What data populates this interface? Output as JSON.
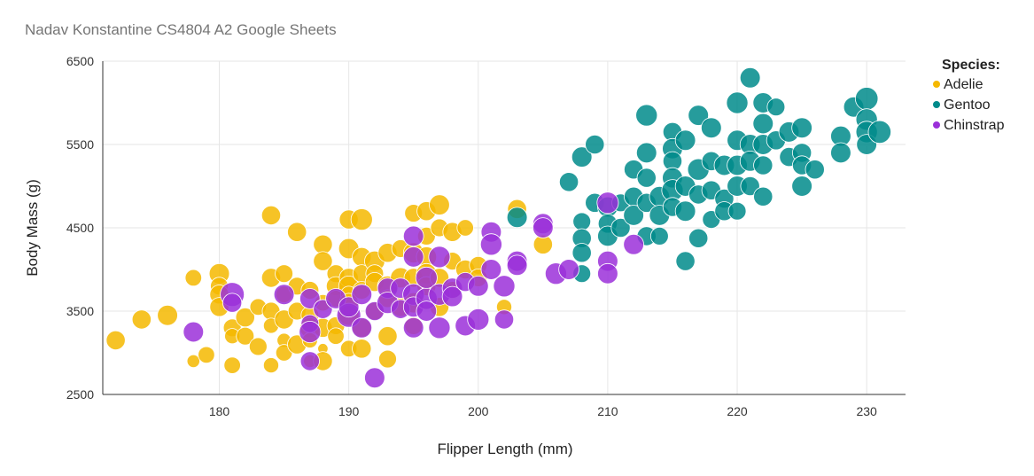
{
  "page": {
    "title": "Nadav Konstantine CS4804 A2 Google Sheets"
  },
  "chart_data": {
    "type": "scatter",
    "xlabel": "Flipper Length (mm)",
    "ylabel": "Body Mass (g)",
    "xlim": [
      171,
      233
    ],
    "ylim": [
      2500,
      6500
    ],
    "x_ticks": [
      180,
      190,
      200,
      210,
      220,
      230
    ],
    "y_ticks": [
      2500,
      3500,
      4500,
      5500,
      6500
    ],
    "grid": true,
    "bubble_size_encoding": true,
    "legend": {
      "title": "Species:",
      "position": "top-right"
    },
    "colors": {
      "Adelie": "#f5b800",
      "Gentoo": "#008b8b",
      "Chinstrap": "#9b30d9"
    },
    "series": [
      {
        "name": "Adelie",
        "points": [
          [
            172,
            3150,
            0.55
          ],
          [
            174,
            3400,
            0.55
          ],
          [
            176,
            3450,
            0.6
          ],
          [
            178,
            3900,
            0.45
          ],
          [
            178,
            2900,
            0.3
          ],
          [
            179,
            2975,
            0.45
          ],
          [
            180,
            3950,
            0.6
          ],
          [
            180,
            3800,
            0.5
          ],
          [
            180,
            3700,
            0.55
          ],
          [
            180,
            3550,
            0.55
          ],
          [
            181,
            3300,
            0.5
          ],
          [
            181,
            3200,
            0.4
          ],
          [
            181,
            2850,
            0.45
          ],
          [
            182,
            3425,
            0.55
          ],
          [
            182,
            3200,
            0.5
          ],
          [
            183,
            3550,
            0.45
          ],
          [
            183,
            3075,
            0.5
          ],
          [
            184,
            4650,
            0.55
          ],
          [
            184,
            3900,
            0.55
          ],
          [
            184,
            3500,
            0.5
          ],
          [
            184,
            3325,
            0.4
          ],
          [
            184,
            2850,
            0.4
          ],
          [
            185,
            3950,
            0.5
          ],
          [
            185,
            3700,
            0.45
          ],
          [
            185,
            3400,
            0.55
          ],
          [
            185,
            3150,
            0.35
          ],
          [
            185,
            3000,
            0.45
          ],
          [
            186,
            4450,
            0.55
          ],
          [
            186,
            3800,
            0.5
          ],
          [
            186,
            3500,
            0.5
          ],
          [
            186,
            3100,
            0.55
          ],
          [
            187,
            3750,
            0.5
          ],
          [
            187,
            3450,
            0.5
          ],
          [
            187,
            3300,
            0.6
          ],
          [
            187,
            3150,
            0.4
          ],
          [
            187,
            2900,
            0.3
          ],
          [
            188,
            4300,
            0.55
          ],
          [
            188,
            4100,
            0.55
          ],
          [
            188,
            3600,
            0.45
          ],
          [
            188,
            3300,
            0.55
          ],
          [
            188,
            3050,
            0.2
          ],
          [
            188,
            2900,
            0.55
          ],
          [
            189,
            3950,
            0.5
          ],
          [
            189,
            3800,
            0.55
          ],
          [
            189,
            3650,
            0.45
          ],
          [
            189,
            3325,
            0.5
          ],
          [
            189,
            3200,
            0.45
          ],
          [
            190,
            4600,
            0.55
          ],
          [
            190,
            4250,
            0.6
          ],
          [
            190,
            3900,
            0.55
          ],
          [
            190,
            3800,
            0.6
          ],
          [
            190,
            3700,
            0.45
          ],
          [
            190,
            3600,
            0.55
          ],
          [
            190,
            3450,
            0.6
          ],
          [
            190,
            3050,
            0.45
          ],
          [
            191,
            4600,
            0.65
          ],
          [
            191,
            4150,
            0.55
          ],
          [
            191,
            3950,
            0.5
          ],
          [
            191,
            3750,
            0.5
          ],
          [
            191,
            3300,
            0.55
          ],
          [
            191,
            3050,
            0.55
          ],
          [
            192,
            4100,
            0.6
          ],
          [
            192,
            3950,
            0.5
          ],
          [
            192,
            3850,
            0.55
          ],
          [
            192,
            3500,
            0.5
          ],
          [
            193,
            4200,
            0.55
          ],
          [
            193,
            3800,
            0.6
          ],
          [
            193,
            3650,
            0.5
          ],
          [
            193,
            3200,
            0.55
          ],
          [
            193,
            2925,
            0.5
          ],
          [
            194,
            4250,
            0.5
          ],
          [
            194,
            3900,
            0.6
          ],
          [
            194,
            3550,
            0.55
          ],
          [
            195,
            4675,
            0.5
          ],
          [
            195,
            4200,
            0.6
          ],
          [
            195,
            3900,
            0.55
          ],
          [
            195,
            3600,
            0.6
          ],
          [
            195,
            3325,
            0.5
          ],
          [
            196,
            4700,
            0.55
          ],
          [
            196,
            4400,
            0.5
          ],
          [
            196,
            4150,
            0.6
          ],
          [
            196,
            3950,
            0.6
          ],
          [
            196,
            3800,
            0.55
          ],
          [
            197,
            4775,
            0.6
          ],
          [
            197,
            4500,
            0.5
          ],
          [
            197,
            3900,
            0.55
          ],
          [
            197,
            3550,
            0.55
          ],
          [
            198,
            4450,
            0.55
          ],
          [
            198,
            4100,
            0.5
          ],
          [
            198,
            3750,
            0.5
          ],
          [
            199,
            4500,
            0.45
          ],
          [
            199,
            4000,
            0.55
          ],
          [
            200,
            4050,
            0.5
          ],
          [
            200,
            3900,
            0.5
          ],
          [
            202,
            3550,
            0.4
          ],
          [
            203,
            4725,
            0.55
          ],
          [
            205,
            4300,
            0.55
          ]
        ]
      },
      {
        "name": "Gentoo",
        "points": [
          [
            203,
            4625,
            0.6
          ],
          [
            207,
            5050,
            0.55
          ],
          [
            208,
            5350,
            0.6
          ],
          [
            208,
            4575,
            0.5
          ],
          [
            208,
            4375,
            0.55
          ],
          [
            208,
            4200,
            0.55
          ],
          [
            208,
            3950,
            0.5
          ],
          [
            209,
            5500,
            0.55
          ],
          [
            209,
            4800,
            0.55
          ],
          [
            210,
            4750,
            0.6
          ],
          [
            210,
            4550,
            0.55
          ],
          [
            210,
            4400,
            0.6
          ],
          [
            211,
            4800,
            0.5
          ],
          [
            211,
            4500,
            0.55
          ],
          [
            212,
            5200,
            0.55
          ],
          [
            212,
            4875,
            0.55
          ],
          [
            212,
            4650,
            0.6
          ],
          [
            213,
            5850,
            0.65
          ],
          [
            213,
            5400,
            0.6
          ],
          [
            213,
            5100,
            0.55
          ],
          [
            213,
            4800,
            0.55
          ],
          [
            213,
            4400,
            0.55
          ],
          [
            214,
            4875,
            0.6
          ],
          [
            214,
            4650,
            0.6
          ],
          [
            214,
            4400,
            0.5
          ],
          [
            215,
            5650,
            0.55
          ],
          [
            215,
            5450,
            0.6
          ],
          [
            215,
            5300,
            0.55
          ],
          [
            215,
            5100,
            0.6
          ],
          [
            215,
            4950,
            0.65
          ],
          [
            215,
            4750,
            0.55
          ],
          [
            216,
            5550,
            0.6
          ],
          [
            216,
            5000,
            0.6
          ],
          [
            216,
            4700,
            0.6
          ],
          [
            216,
            4100,
            0.55
          ],
          [
            217,
            5850,
            0.6
          ],
          [
            217,
            5200,
            0.65
          ],
          [
            217,
            4900,
            0.55
          ],
          [
            217,
            4375,
            0.55
          ],
          [
            218,
            5700,
            0.6
          ],
          [
            218,
            5300,
            0.55
          ],
          [
            218,
            4950,
            0.55
          ],
          [
            218,
            4600,
            0.5
          ],
          [
            219,
            5250,
            0.6
          ],
          [
            219,
            4850,
            0.55
          ],
          [
            219,
            4700,
            0.55
          ],
          [
            220,
            6000,
            0.65
          ],
          [
            220,
            5550,
            0.6
          ],
          [
            220,
            5250,
            0.6
          ],
          [
            220,
            5000,
            0.6
          ],
          [
            220,
            4700,
            0.5
          ],
          [
            221,
            6300,
            0.6
          ],
          [
            221,
            5500,
            0.6
          ],
          [
            221,
            5300,
            0.6
          ],
          [
            221,
            5000,
            0.55
          ],
          [
            222,
            6000,
            0.6
          ],
          [
            222,
            5750,
            0.6
          ],
          [
            222,
            5500,
            0.6
          ],
          [
            222,
            5250,
            0.55
          ],
          [
            222,
            4875,
            0.55
          ],
          [
            223,
            5950,
            0.5
          ],
          [
            223,
            5550,
            0.55
          ],
          [
            224,
            5650,
            0.6
          ],
          [
            224,
            5350,
            0.55
          ],
          [
            225,
            5700,
            0.6
          ],
          [
            225,
            5400,
            0.55
          ],
          [
            225,
            5250,
            0.55
          ],
          [
            225,
            5000,
            0.6
          ],
          [
            226,
            5200,
            0.55
          ],
          [
            228,
            5600,
            0.6
          ],
          [
            228,
            5400,
            0.6
          ],
          [
            229,
            5950,
            0.6
          ],
          [
            230,
            6050,
            0.7
          ],
          [
            230,
            5800,
            0.65
          ],
          [
            230,
            5650,
            0.65
          ],
          [
            230,
            5500,
            0.6
          ],
          [
            231,
            5650,
            0.7
          ]
        ]
      },
      {
        "name": "Chinstrap",
        "points": [
          [
            178,
            3250,
            0.6
          ],
          [
            181,
            3700,
            0.75
          ],
          [
            181,
            3600,
            0.55
          ],
          [
            185,
            3700,
            0.6
          ],
          [
            187,
            3650,
            0.6
          ],
          [
            187,
            3350,
            0.5
          ],
          [
            187,
            3250,
            0.65
          ],
          [
            187,
            2900,
            0.55
          ],
          [
            188,
            3525,
            0.55
          ],
          [
            189,
            3650,
            0.6
          ],
          [
            190,
            3450,
            0.75
          ],
          [
            190,
            3550,
            0.6
          ],
          [
            191,
            3700,
            0.6
          ],
          [
            191,
            3300,
            0.6
          ],
          [
            192,
            3500,
            0.55
          ],
          [
            192,
            2700,
            0.6
          ],
          [
            193,
            3775,
            0.6
          ],
          [
            193,
            3600,
            0.65
          ],
          [
            194,
            3775,
            0.6
          ],
          [
            194,
            3525,
            0.55
          ],
          [
            195,
            4400,
            0.6
          ],
          [
            195,
            4150,
            0.6
          ],
          [
            195,
            3700,
            0.65
          ],
          [
            195,
            3550,
            0.6
          ],
          [
            195,
            3300,
            0.6
          ],
          [
            196,
            3650,
            0.65
          ],
          [
            196,
            3500,
            0.6
          ],
          [
            196,
            3900,
            0.65
          ],
          [
            197,
            4150,
            0.65
          ],
          [
            197,
            3700,
            0.65
          ],
          [
            197,
            3300,
            0.65
          ],
          [
            198,
            3775,
            0.6
          ],
          [
            198,
            3675,
            0.6
          ],
          [
            199,
            3850,
            0.55
          ],
          [
            199,
            3325,
            0.6
          ],
          [
            200,
            3800,
            0.6
          ],
          [
            200,
            3400,
            0.65
          ],
          [
            201,
            4450,
            0.6
          ],
          [
            201,
            4300,
            0.65
          ],
          [
            201,
            4000,
            0.6
          ],
          [
            202,
            3800,
            0.65
          ],
          [
            202,
            3400,
            0.55
          ],
          [
            203,
            4100,
            0.6
          ],
          [
            203,
            4050,
            0.6
          ],
          [
            205,
            4550,
            0.6
          ],
          [
            205,
            4500,
            0.6
          ],
          [
            206,
            3950,
            0.65
          ],
          [
            207,
            4000,
            0.6
          ],
          [
            210,
            4800,
            0.65
          ],
          [
            210,
            4100,
            0.6
          ],
          [
            210,
            3950,
            0.6
          ],
          [
            212,
            4300,
            0.6
          ]
        ]
      }
    ]
  }
}
